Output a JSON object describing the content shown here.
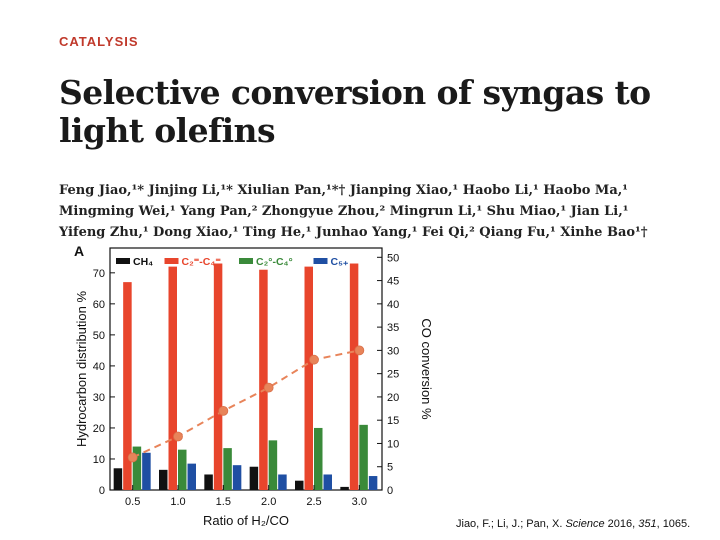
{
  "section": "CATALYSIS",
  "title": "Selective conversion of syngas to light olefins",
  "authors_lines": [
    "Feng Jiao,¹* Jinjing Li,¹* Xiulian Pan,¹*† Jianping Xiao,¹ Haobo Li,¹ Haobo Ma,¹",
    "Mingming Wei,¹ Yang Pan,² Zhongyue Zhou,² Mingrun Li,¹ Shu Miao,¹ Jian Li,¹",
    "Yifeng Zhu,¹ Dong Xiao,¹ Ting He,¹ Junhao Yang,¹ Fei Qi,² Qiang Fu,¹ Xinhe Bao¹†"
  ],
  "citation": {
    "prefix": "Jiao, F.; Li, J.; Pan, X. ",
    "journal": "Science",
    "year": " 2016, ",
    "volume": "351",
    "pages": ", 1065."
  },
  "chart_data": {
    "type": "bar",
    "panel_label": "A",
    "xlabel": "Ratio of H₂/CO",
    "ylabel": "Hydrocarbon distribution %",
    "y2label": "CO conversion %",
    "categories": [
      "0.5",
      "1.0",
      "1.5",
      "2.0",
      "2.5",
      "3.0"
    ],
    "ylim": [
      0,
      78
    ],
    "yticks": [
      0,
      10,
      20,
      30,
      40,
      50,
      60,
      70
    ],
    "y2lim": [
      0,
      52
    ],
    "y2ticks": [
      0,
      5,
      10,
      15,
      20,
      25,
      30,
      35,
      40,
      45,
      50
    ],
    "series": [
      {
        "name": "CH4",
        "label": "CH₄",
        "color": "#111111",
        "values": [
          7,
          6.5,
          5,
          7.5,
          3,
          1
        ]
      },
      {
        "name": "C2=-C4=",
        "label": "C₂⁼-C₄⁼",
        "color": "#e8452c",
        "values": [
          67,
          72,
          73,
          71,
          72,
          73
        ]
      },
      {
        "name": "C2o-C4o",
        "label": "C₂°-C₄°",
        "color": "#3a8a3a",
        "values": [
          14,
          13,
          13.5,
          16,
          20,
          21
        ]
      },
      {
        "name": "C5+",
        "label": "C₅₊",
        "color": "#1f4fa3",
        "values": [
          12,
          8.5,
          8,
          5,
          5,
          4.5
        ]
      }
    ],
    "line": {
      "name": "CO conversion",
      "color": "#e8845a",
      "values": [
        7,
        11.5,
        17,
        22,
        28,
        30
      ]
    }
  }
}
